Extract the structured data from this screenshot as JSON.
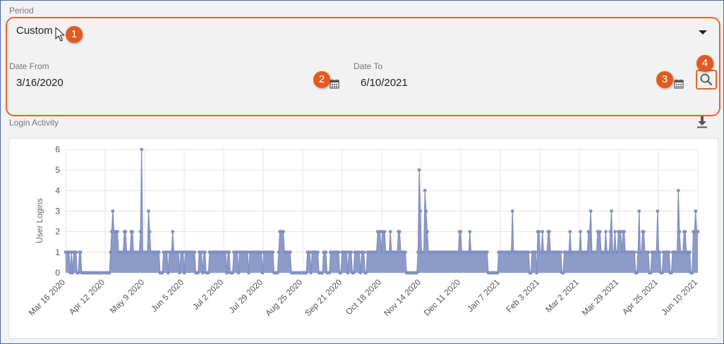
{
  "period": {
    "label": "Period",
    "value": "Custom"
  },
  "date_from": {
    "label": "Date From",
    "value": "3/16/2020"
  },
  "date_to": {
    "label": "Date To",
    "value": "6/10/2021"
  },
  "login_activity": {
    "label": "Login Activity"
  },
  "icons": {
    "dropdown": "chevron-down-icon",
    "date_from_calendar": "calendar-icon",
    "date_to_calendar": "calendar-icon",
    "search": "search-icon",
    "download": "download-icon",
    "cursor": "cursor-pointer-icon"
  },
  "callouts": [
    "1",
    "2",
    "3",
    "4"
  ],
  "colors": {
    "accent": "#e8632b",
    "badge": "#e35a1e",
    "area": "#8d9bc9",
    "line": "#7f8fc0"
  },
  "chart_data": {
    "type": "area",
    "title": "",
    "xlabel": "",
    "ylabel": "User Logins",
    "ylim": [
      0,
      6
    ],
    "y_ticks": [
      "0",
      "1",
      "2",
      "3",
      "4",
      "5",
      "6"
    ],
    "x_start": "2020-03-16",
    "x_end": "2021-06-10",
    "x_tick_labels": [
      "Mar 16 2020",
      "Apr 12 2020",
      "May 9 2020",
      "Jun 5 2020",
      "Jul 2 2020",
      "Jul 29 2020",
      "Aug 25 2020",
      "Sep 21 2020",
      "Oct 18 2020",
      "Nov 14 2020",
      "Dec 11 2020",
      "Jan 7 2021",
      "Feb 3 2021",
      "Mar 2 2021",
      "Mar 29 2021",
      "Apr 25 2021",
      "Jun 10 2021"
    ],
    "grid": true,
    "series": [
      {
        "values": [
          1,
          1,
          1,
          1,
          0,
          1,
          0,
          1,
          1,
          1,
          0,
          0,
          1,
          1,
          0,
          0,
          0,
          0,
          0,
          0,
          0,
          0,
          0,
          0,
          0,
          0,
          0,
          0,
          0,
          0,
          0,
          0,
          0,
          0,
          0,
          0,
          0,
          0,
          0,
          1,
          2,
          3,
          2,
          2,
          2,
          2,
          1,
          1,
          1,
          1,
          1,
          2,
          2,
          1,
          1,
          1,
          1,
          2,
          2,
          1,
          1,
          1,
          1,
          1,
          1,
          2,
          6,
          1,
          1,
          1,
          1,
          1,
          3,
          2,
          1,
          1,
          1,
          1,
          1,
          1,
          1,
          1,
          0,
          0,
          0,
          1,
          1,
          1,
          1,
          0,
          1,
          1,
          1,
          2,
          1,
          1,
          1,
          1,
          1,
          0,
          1,
          1,
          1,
          0,
          1,
          1,
          1,
          1,
          1,
          1,
          1,
          1,
          1,
          0,
          0,
          0,
          1,
          1,
          1,
          0,
          1,
          1,
          0,
          0,
          0,
          1,
          1,
          1,
          1,
          1,
          1,
          1,
          1,
          1,
          1,
          1,
          1,
          1,
          1,
          1,
          0,
          1,
          1,
          0,
          0,
          0,
          1,
          1,
          1,
          1,
          0,
          1,
          1,
          1,
          1,
          1,
          1,
          1,
          1,
          0,
          1,
          1,
          1,
          1,
          1,
          1,
          1,
          1,
          1,
          1,
          1,
          0,
          1,
          1,
          1,
          1,
          1,
          1,
          1,
          1,
          1,
          0,
          0,
          0,
          0,
          1,
          2,
          2,
          2,
          2,
          1,
          1,
          1,
          1,
          1,
          1,
          0,
          0,
          0,
          0,
          0,
          0,
          0,
          0,
          0,
          0,
          0,
          0,
          0,
          0,
          1,
          1,
          1,
          0,
          1,
          1,
          1,
          1,
          1,
          1,
          0,
          0,
          0,
          0,
          1,
          1,
          1,
          0,
          0,
          0,
          1,
          1,
          1,
          1,
          1,
          1,
          1,
          1,
          0,
          0,
          1,
          1,
          1,
          1,
          1,
          0,
          1,
          1,
          1,
          0,
          0,
          1,
          1,
          1,
          1,
          1,
          0,
          1,
          1,
          1,
          0,
          0,
          1,
          1,
          1,
          1,
          1,
          1,
          1,
          1,
          1,
          2,
          2,
          2,
          1,
          2,
          2,
          2,
          1,
          1,
          1,
          1,
          2,
          1,
          1,
          1,
          1,
          1,
          1,
          2,
          2,
          1,
          1,
          1,
          1,
          1,
          0,
          0,
          0,
          0,
          0,
          0,
          0,
          0,
          0,
          0,
          1,
          5,
          3,
          1,
          1,
          1,
          4,
          3,
          2,
          1,
          1,
          1,
          1,
          1,
          1,
          1,
          1,
          1,
          1,
          1,
          1,
          1,
          1,
          1,
          1,
          1,
          1,
          1,
          1,
          1,
          1,
          1,
          1,
          1,
          1,
          1,
          2,
          2,
          1,
          1,
          1,
          1,
          1,
          1,
          1,
          2,
          1,
          1,
          1,
          1,
          1,
          1,
          1,
          1,
          1,
          1,
          1,
          1,
          1,
          1,
          1,
          0,
          0,
          0,
          0,
          0,
          0,
          0,
          0,
          0,
          1,
          1,
          1,
          1,
          1,
          1,
          1,
          1,
          1,
          1,
          1,
          1,
          3,
          1,
          1,
          1,
          1,
          1,
          1,
          1,
          1,
          1,
          1,
          1,
          1,
          1,
          1,
          0,
          0,
          1,
          1,
          1,
          1,
          0,
          2,
          2,
          1,
          1,
          2,
          1,
          1,
          1,
          1,
          2,
          2,
          1,
          1,
          1,
          1,
          1,
          1,
          1,
          1,
          1,
          1,
          0,
          0,
          1,
          1,
          1,
          1,
          1,
          2,
          1,
          1,
          1,
          1,
          1,
          1,
          1,
          1,
          2,
          1,
          1,
          1,
          1,
          1,
          1,
          2,
          2,
          3,
          1,
          1,
          1,
          1,
          1,
          2,
          2,
          2,
          1,
          1,
          1,
          1,
          2,
          1,
          1,
          1,
          2,
          3,
          1,
          1,
          2,
          1,
          1,
          2,
          2,
          2,
          1,
          2,
          2,
          1,
          1,
          1,
          1,
          1,
          1,
          1,
          1,
          1,
          0,
          0,
          1,
          3,
          1,
          1,
          2,
          2,
          1,
          1,
          1,
          1,
          0,
          0,
          1,
          1,
          1,
          1,
          1,
          3,
          1,
          1,
          0,
          0,
          1,
          1,
          1,
          1,
          1,
          1,
          0,
          0,
          1,
          1,
          1,
          1,
          1,
          4,
          2,
          1,
          1,
          1,
          2,
          2,
          1,
          1,
          1,
          1,
          0,
          0,
          2,
          2,
          3,
          2,
          2
        ]
      }
    ]
  }
}
